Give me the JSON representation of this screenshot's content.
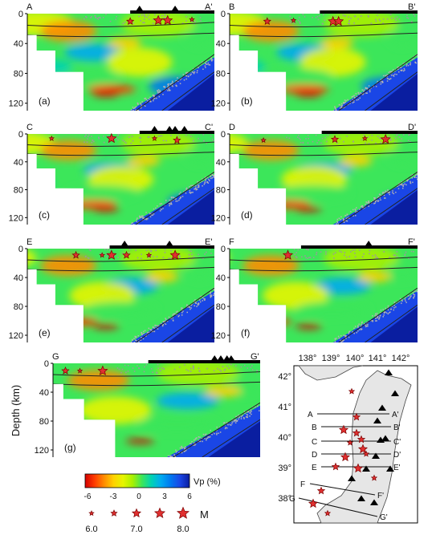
{
  "ylabel": "Depth (km)",
  "depth_ticks": [
    "0",
    "40",
    "80",
    "120"
  ],
  "colorbar": {
    "label": "Vp (%)",
    "ticks": [
      "-6",
      "-3",
      "0",
      "3",
      "6"
    ],
    "colors": [
      "#d40000",
      "#ff3c00",
      "#ff8c00",
      "#ffd200",
      "#e6f500",
      "#a8f000",
      "#3ce65a",
      "#00d2b4",
      "#00aaf0",
      "#0078f0",
      "#1a46e6",
      "#0a1ea0"
    ]
  },
  "magnitude_legend": {
    "label": "M",
    "ticks": [
      "6.0",
      "7.0",
      "8.0"
    ]
  },
  "panels": [
    {
      "id": "a",
      "tag": "(a)",
      "start": "A",
      "end": "A'"
    },
    {
      "id": "b",
      "tag": "(b)",
      "start": "B",
      "end": "B'"
    },
    {
      "id": "c",
      "tag": "(c)",
      "start": "C",
      "end": "C'"
    },
    {
      "id": "d",
      "tag": "(d)",
      "start": "D",
      "end": "D'"
    },
    {
      "id": "e",
      "tag": "(e)",
      "start": "E",
      "end": "E'"
    },
    {
      "id": "f",
      "tag": "(f)",
      "start": "F",
      "end": "F'"
    },
    {
      "id": "g",
      "tag": "(g)",
      "start": "G",
      "end": "G'"
    }
  ],
  "map": {
    "lon_labels": [
      "138°",
      "139°",
      "140°",
      "141°",
      "142°"
    ],
    "lat_labels": [
      "42°",
      "41°",
      "40°",
      "39°",
      "38°"
    ],
    "profiles": [
      {
        "start": "A",
        "end": "A'"
      },
      {
        "start": "B",
        "end": "B'"
      },
      {
        "start": "C",
        "end": "C'"
      },
      {
        "start": "D",
        "end": "D'"
      },
      {
        "start": "E",
        "end": "E'"
      },
      {
        "start": "F",
        "end": "F'"
      },
      {
        "start": "G",
        "end": "G'"
      }
    ]
  }
}
